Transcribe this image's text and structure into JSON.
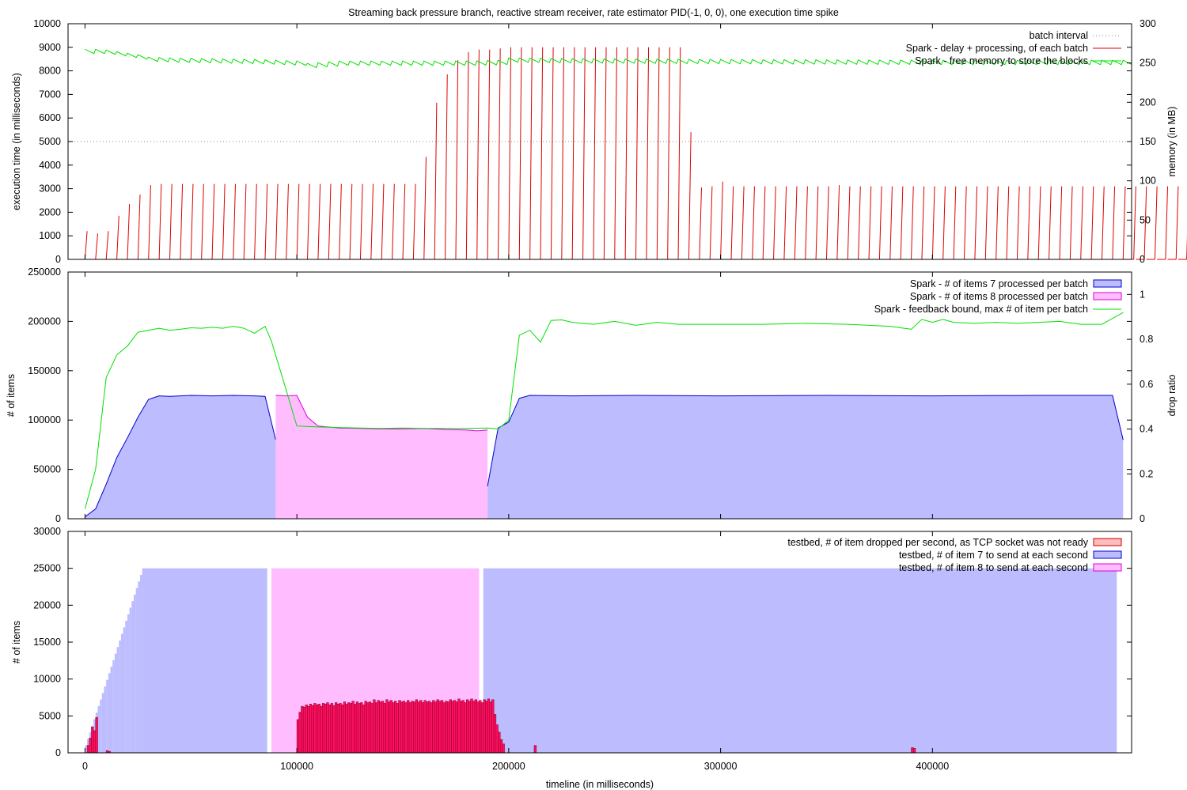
{
  "chart_data": {
    "type": "multi-panel",
    "title": "Streaming back pressure branch, reactive stream receiver, rate estimator PID(-1, 0, 0), one execution time spike",
    "xlabel": "timeline (in milliseconds)",
    "xlim": [
      -8000,
      494000
    ],
    "xticks": [
      0,
      100000,
      200000,
      300000,
      400000
    ],
    "xtick_labels": [
      "0",
      "100000",
      "200000",
      "300000",
      "400000"
    ],
    "colors": {
      "red": "#e00000",
      "green": "#00e000",
      "blue": "#0000cc",
      "blue_fill": "#bcbcff",
      "pink_fill": "#ffbcff",
      "pink_line": "#dd00dd",
      "drop_fill": "#ff1060",
      "grey": "#888888"
    },
    "panels": [
      {
        "id": "execution",
        "ylabel": "execution time (in milliseconds)",
        "y2label": "memory (in MB)",
        "ylim": [
          0,
          10000
        ],
        "yticks": [
          0,
          1000,
          2000,
          3000,
          4000,
          5000,
          6000,
          7000,
          8000,
          9000,
          10000
        ],
        "ytick_labels": [
          "0",
          "1000",
          "2000",
          "3000",
          "4000",
          "5000",
          "6000",
          "7000",
          "8000",
          "9000",
          "10000"
        ],
        "y2lim": [
          0,
          300
        ],
        "y2ticks": [
          0,
          50,
          100,
          150,
          200,
          250,
          300
        ],
        "y2tick_labels": [
          "0",
          "50",
          "100",
          "150",
          "200",
          "250",
          "300"
        ],
        "legend": [
          "batch interval",
          "Spark - delay + processing, of each batch",
          "Spark - free memory to store the blocks"
        ],
        "batch_interval": 5000,
        "delay_peaks": [
          1200,
          1100,
          1200,
          1850,
          2350,
          2750,
          3150,
          3200,
          3200,
          3200,
          3200,
          3200,
          3200,
          3200,
          3200,
          3200,
          3200,
          3200,
          3200,
          3200,
          3200,
          3200,
          3200,
          3200,
          3200,
          3200,
          3200,
          3200,
          3200,
          3200,
          3200,
          3200,
          4350,
          6650,
          7850,
          8450,
          8800,
          8900,
          8900,
          8950,
          9000,
          9000,
          9000,
          9000,
          9000,
          9000,
          9000,
          9000,
          9000,
          9000,
          9000,
          9000,
          9000,
          9000,
          9000,
          9000,
          9000,
          5400,
          3050,
          3100,
          3300,
          3100,
          3100,
          3100,
          3100,
          3100,
          3100,
          3100,
          3100,
          3100,
          3100,
          3150,
          3100,
          3100,
          3100,
          3100,
          3100,
          3100,
          3100,
          3100,
          3100,
          3100,
          3100,
          3100,
          3100,
          3100,
          3100,
          3100,
          3100,
          3100,
          3100,
          3100,
          3100,
          3100,
          3100,
          3100,
          3100,
          3100,
          3100,
          3100,
          3100,
          3100,
          3100,
          3100,
          3100,
          3100,
          3100,
          3100,
          3100,
          3100,
          1900
        ],
        "memory_mb": {
          "x": [
            0,
            5000,
            10000,
            15000,
            20000,
            25000,
            30000,
            40000,
            60000,
            80000,
            100000,
            105000,
            120000,
            150000,
            180000,
            195000,
            200000,
            230000,
            300000,
            400000,
            490000
          ],
          "y": [
            265,
            265,
            264,
            262,
            260,
            258,
            255,
            254,
            253,
            252,
            250,
            247,
            250,
            250,
            250,
            251,
            254,
            253,
            252,
            251,
            251
          ]
        }
      },
      {
        "id": "processed",
        "ylabel": "# of items",
        "y2label": "drop ratio",
        "ylim": [
          0,
          250000
        ],
        "yticks": [
          0,
          50000,
          100000,
          150000,
          200000,
          250000
        ],
        "ytick_labels": [
          "0",
          "50000",
          "100000",
          "150000",
          "200000",
          "250000"
        ],
        "y2lim": [
          0,
          1.1
        ],
        "y2ticks": [
          0,
          0.2,
          0.4,
          0.6,
          0.8,
          1
        ],
        "y2tick_labels": [
          "0",
          "0.2",
          "0.4",
          "0.6",
          "0.8",
          "1"
        ],
        "legend": [
          "Spark - # of items 7 processed per batch",
          "Spark - # of items 8 processed per batch",
          "Spark - feedback bound, max # of item per batch"
        ],
        "items7_a": {
          "x": [
            0,
            5000,
            10000,
            15000,
            20000,
            25000,
            30000,
            35000,
            40000,
            50000,
            60000,
            70000,
            80000,
            85000,
            90000
          ],
          "y": [
            2000,
            10000,
            35000,
            62000,
            82000,
            103000,
            121000,
            124500,
            124000,
            125000,
            124500,
            125000,
            124500,
            124000,
            80000
          ]
        },
        "items8": {
          "x": [
            90000,
            95000,
            100000,
            105000,
            110000,
            120000,
            130000,
            140000,
            150000,
            160000,
            170000,
            180000,
            185000,
            190000
          ],
          "y": [
            125000,
            124500,
            125000,
            103000,
            94000,
            92000,
            91500,
            91000,
            91000,
            91500,
            90500,
            90000,
            89000,
            90000
          ]
        },
        "items7_b": {
          "x": [
            190000,
            195000,
            200000,
            205000,
            210000,
            230000,
            260000,
            300000,
            350000,
            400000,
            450000,
            485000,
            490000
          ],
          "y": [
            33000,
            92000,
            98000,
            122000,
            125000,
            124500,
            125000,
            124500,
            125000,
            124500,
            125000,
            125000,
            80000
          ]
        },
        "feedback": {
          "x": [
            0,
            5000,
            10000,
            15000,
            20000,
            25000,
            30000,
            35000,
            40000,
            45000,
            50000,
            55000,
            60000,
            65000,
            70000,
            75000,
            80000,
            85000,
            88000,
            95000,
            100000,
            110000,
            120000,
            130000,
            140000,
            150000,
            160000,
            170000,
            180000,
            190000,
            195000,
            200000,
            205000,
            210000,
            215000,
            220000,
            225000,
            230000,
            240000,
            250000,
            260000,
            270000,
            280000,
            300000,
            320000,
            340000,
            360000,
            380000,
            390000,
            395000,
            400000,
            405000,
            410000,
            420000,
            430000,
            440000,
            450000,
            460000,
            470000,
            480000,
            490000
          ],
          "y": [
            10000,
            50000,
            143000,
            166000,
            175000,
            189000,
            191000,
            193000,
            191000,
            192000,
            193500,
            193000,
            194000,
            193000,
            195000,
            193000,
            188000,
            195000,
            180000,
            130000,
            94000,
            93000,
            92500,
            92000,
            91500,
            92000,
            91500,
            91500,
            91500,
            92000,
            91000,
            100000,
            186000,
            191000,
            179000,
            201000,
            201500,
            199000,
            197000,
            200000,
            196000,
            199000,
            197000,
            197000,
            197000,
            198000,
            197000,
            195000,
            192000,
            202000,
            199000,
            202000,
            199000,
            198000,
            199000,
            198000,
            199000,
            200000,
            197000,
            197000,
            209000
          ]
        }
      },
      {
        "id": "testbed",
        "ylabel": "# of items",
        "ylim": [
          0,
          30000
        ],
        "yticks": [
          0,
          5000,
          10000,
          15000,
          20000,
          25000,
          30000
        ],
        "ytick_labels": [
          "0",
          "5000",
          "10000",
          "15000",
          "20000",
          "25000",
          "30000"
        ],
        "legend": [
          "testbed, # of item dropped per second, as TCP socket was not ready",
          "testbed, # of item 7 to send at each second",
          "testbed, # of item 8 to send at each second"
        ],
        "send7_ramp": {
          "x_start": 0,
          "x_end": 27000,
          "y_start": 1000,
          "y_end": 25000
        },
        "send7_plateau": [
          [
            27000,
            86000,
            25000
          ],
          [
            188000,
            487000,
            25000
          ]
        ],
        "send8_plateau": [
          [
            88000,
            186000,
            25000
          ]
        ],
        "drops_cluster": {
          "x_start": 100000,
          "x_end": 197000,
          "step": 1000,
          "y": [
            4500,
            5500,
            6300,
            6200,
            6500,
            6300,
            6600,
            6400,
            6700,
            6500,
            6600,
            6300,
            6700,
            6600,
            6800,
            6500,
            6700,
            6400,
            6800,
            6600,
            6700,
            6500,
            6900,
            6600,
            6800,
            6700,
            7000,
            6600,
            6900,
            6700,
            6800,
            6500,
            7000,
            6800,
            6900,
            6700,
            7200,
            6800,
            7100,
            6900,
            7000,
            6700,
            7200,
            6900,
            7100,
            6800,
            7000,
            6700,
            7100,
            6900,
            7000,
            6800,
            7100,
            6800,
            7000,
            6900,
            7200,
            6900,
            7100,
            6800,
            7100,
            6900,
            7000,
            6800,
            7100,
            6900,
            7200,
            7000,
            7100,
            6800,
            7000,
            6900,
            7200,
            7000,
            7100,
            6900,
            7300,
            7000,
            7100,
            6800,
            7200,
            7000,
            7300,
            7000,
            7200,
            6900,
            7100,
            6800,
            7200,
            7000,
            7300,
            6900,
            7200,
            5200,
            3800,
            2800,
            1800,
            1200
          ],
          "min_drop": 1000
        },
        "drops_other": {
          "x": [
            1000,
            2000,
            3000,
            4000,
            5000,
            10000,
            11000,
            212000,
            390000,
            391000
          ],
          "y": [
            1000,
            2000,
            3500,
            3000,
            4800,
            300,
            200,
            1000,
            700,
            600
          ]
        }
      }
    ]
  }
}
